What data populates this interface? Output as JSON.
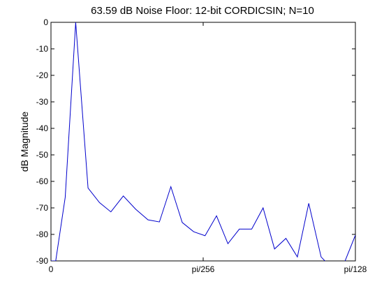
{
  "chart_data": {
    "type": "line",
    "title": "63.59 dB Noise Floor: 12-bit CORDICSIN; N=10",
    "xlabel": "",
    "ylabel": "dB Magnitude",
    "xlim": [
      0,
      32
    ],
    "ylim": [
      -90,
      0
    ],
    "x_ticks": [
      {
        "value": 0,
        "label": "0"
      },
      {
        "value": 16,
        "label": "pi/256"
      },
      {
        "value": 32,
        "label": "pi/128"
      }
    ],
    "y_ticks": [
      0,
      -10,
      -20,
      -30,
      -40,
      -50,
      -60,
      -70,
      -80,
      -90
    ],
    "grid": false,
    "series_color": "#0000cc",
    "x": [
      0,
      0.5,
      1.5,
      2.6,
      3.9,
      5.1,
      6.3,
      7.6,
      8.9,
      10.2,
      11.4,
      12.6,
      13.8,
      15,
      16.2,
      17.4,
      18.6,
      19.8,
      21.1,
      22.3,
      23.5,
      24.7,
      25.9,
      27.1,
      28.4,
      29.6,
      30.8,
      32
    ],
    "values": [
      -90,
      -90,
      -66,
      0,
      -62.5,
      -68,
      -71.5,
      -65.5,
      -70.5,
      -74.5,
      -75.3,
      -62,
      -75.5,
      -79,
      -80.5,
      -73,
      -83.5,
      -78,
      -78,
      -70,
      -85.5,
      -81.5,
      -88.5,
      -68.3,
      -88.5,
      -93,
      -91,
      -80.3
    ]
  }
}
